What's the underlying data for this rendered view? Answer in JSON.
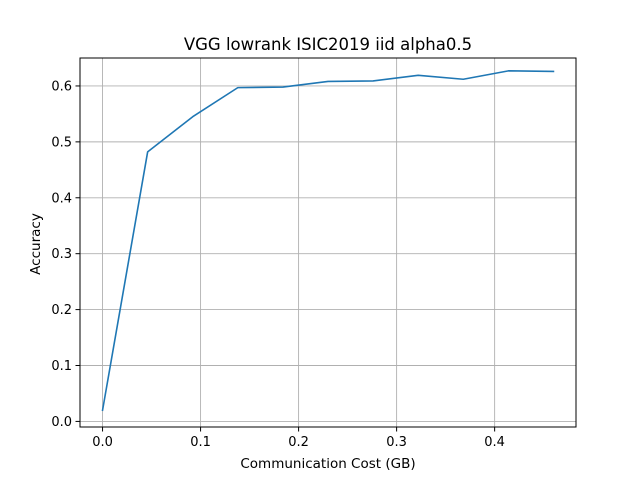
{
  "chart_data": {
    "type": "line",
    "title": "VGG lowrank ISIC2019 iid alpha0.5",
    "xlabel": "Communication Cost (GB)",
    "ylabel": "Accuracy",
    "xlim": [
      -0.023,
      0.483
    ],
    "ylim": [
      -0.01,
      0.65
    ],
    "xticks": [
      0.0,
      0.1,
      0.2,
      0.3,
      0.4
    ],
    "xtick_labels": [
      "0.0",
      "0.1",
      "0.2",
      "0.3",
      "0.4"
    ],
    "yticks": [
      0.0,
      0.1,
      0.2,
      0.3,
      0.4,
      0.5,
      0.6
    ],
    "ytick_labels": [
      "0.0",
      "0.1",
      "0.2",
      "0.3",
      "0.4",
      "0.5",
      "0.6"
    ],
    "grid": true,
    "legend": "none",
    "color": "#1f77b4",
    "series": [
      {
        "x": [
          0.0,
          0.046,
          0.092,
          0.138,
          0.184,
          0.23,
          0.276,
          0.322,
          0.368,
          0.414,
          0.46
        ],
        "y": [
          0.02,
          0.482,
          0.545,
          0.597,
          0.598,
          0.608,
          0.609,
          0.619,
          0.612,
          0.627,
          0.626
        ]
      }
    ]
  }
}
